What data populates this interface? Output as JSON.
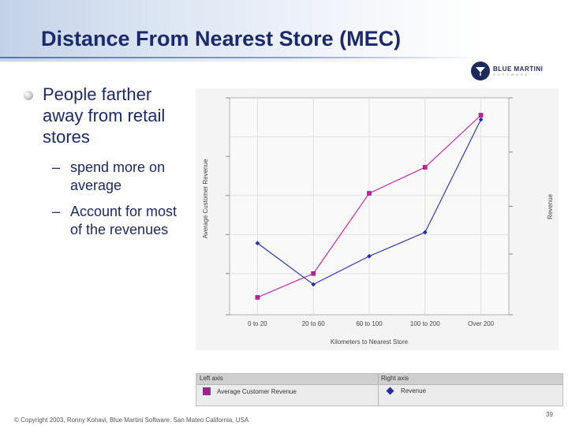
{
  "slide": {
    "title": "Distance From Nearest Store (MEC)",
    "bullet": "People farther away from retail stores",
    "sub_bullets": [
      "spend more on average",
      "Account for most of the revenues"
    ],
    "footer": "© Copyright 2003, Ronny Kohavi, Blue Martini Software. San Mateo California, USA",
    "page_number": "39",
    "logo_text": "BLUE MARTINI",
    "logo_subtext": "SOFTWARE"
  },
  "legend": {
    "left_axis_label": "Left axis",
    "right_axis_label": "Right axis",
    "left_series": "Average Customer Revenue",
    "right_series": "Revenue"
  },
  "colors": {
    "left_series": "#cc1aa8",
    "right_series": "#1f2fb5",
    "title": "#1a2a6c"
  },
  "chart_data": {
    "type": "line",
    "categories": [
      "0 to 20",
      "20 to 60",
      "60 to 100",
      "100 to 200",
      "Over 200"
    ],
    "xlabel": "Kilometers to Nearest Store",
    "ylabel_left": "Average Customer Revenue",
    "ylabel_right": "Revenue",
    "grid": true,
    "series": [
      {
        "name": "Average Customer Revenue",
        "axis": "left",
        "marker": "square",
        "values": [
          0.08,
          0.19,
          0.56,
          0.68,
          0.92
        ]
      },
      {
        "name": "Revenue",
        "axis": "right",
        "marker": "diamond",
        "values": [
          0.33,
          0.14,
          0.27,
          0.38,
          0.9
        ]
      }
    ]
  }
}
